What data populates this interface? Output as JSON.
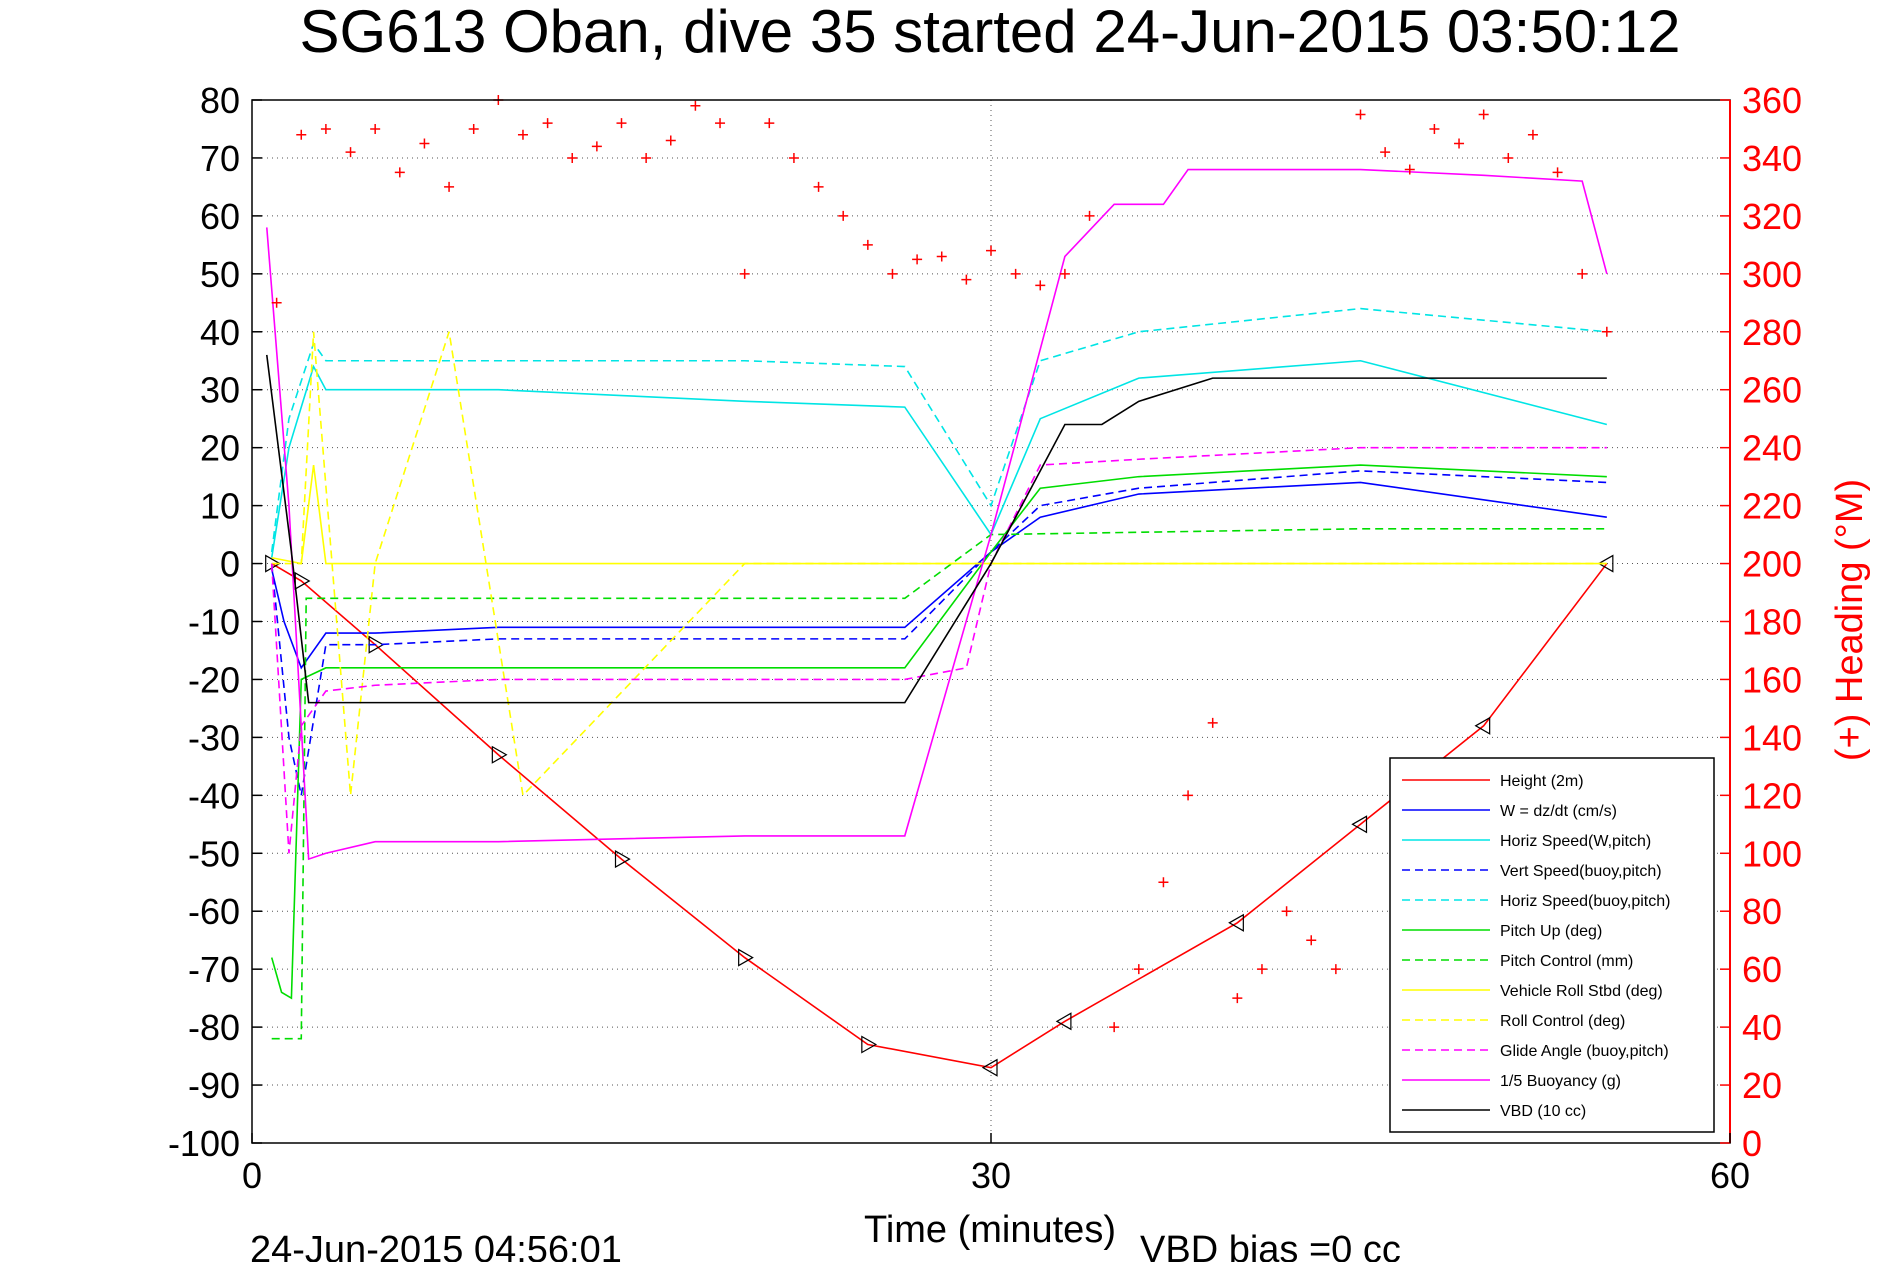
{
  "chart_data": {
    "type": "line",
    "title": "SG613 Oban, dive 35 started 24-Jun-2015 03:50:12",
    "xlabel": "Time (minutes)",
    "ylabel_right": "(+) Heading (°M)",
    "footer_left": "24-Jun-2015 04:56:01",
    "footer_right": "VBD bias =0 cc",
    "xlim": [
      0,
      60
    ],
    "ylim_left": [
      -100,
      80
    ],
    "ylim_right": [
      0,
      360
    ],
    "x_ticks": [
      "0",
      "30",
      "60"
    ],
    "y_left_ticks": [
      "80",
      "70",
      "60",
      "50",
      "40",
      "30",
      "20",
      "10",
      "0",
      "-10",
      "-20",
      "-30",
      "-40",
      "-50",
      "-60",
      "-70",
      "-80",
      "-90",
      "-100"
    ],
    "y_right_ticks": [
      "360",
      "340",
      "320",
      "300",
      "280",
      "260",
      "240",
      "220",
      "200",
      "180",
      "160",
      "140",
      "120",
      "100",
      "80",
      "60",
      "40",
      "20",
      "0"
    ],
    "grid": "dotted",
    "legend_position": "bottom-right",
    "legend": [
      {
        "label": "Height (2m)",
        "color": "#ff0000",
        "dash": false
      },
      {
        "label": "W = dz/dt (cm/s)",
        "color": "#0000ff",
        "dash": false
      },
      {
        "label": "Horiz Speed(W,pitch)",
        "color": "#00e5e5",
        "dash": false
      },
      {
        "label": "Vert Speed(buoy,pitch)",
        "color": "#0000ff",
        "dash": true
      },
      {
        "label": "Horiz Speed(buoy,pitch)",
        "color": "#00e5e5",
        "dash": true
      },
      {
        "label": "Pitch Up (deg)",
        "color": "#00dd00",
        "dash": false
      },
      {
        "label": "Pitch Control (mm)",
        "color": "#00dd00",
        "dash": true
      },
      {
        "label": "Vehicle Roll Stbd (deg)",
        "color": "#ffff00",
        "dash": false
      },
      {
        "label": "Roll Control (deg)",
        "color": "#ffff00",
        "dash": true
      },
      {
        "label": "Glide Angle (buoy,pitch)",
        "color": "#ff00ff",
        "dash": true
      },
      {
        "label": "1/5 Buoyancy (g)",
        "color": "#ff00ff",
        "dash": false
      },
      {
        "label": "VBD (10 cc)",
        "color": "#000000",
        "dash": false
      }
    ],
    "series": [
      {
        "name": "Height (2m)",
        "color": "#ff0000",
        "x": [
          0.8,
          2,
          5,
          10,
          15,
          20,
          25,
          30,
          33,
          40,
          45,
          50,
          55
        ],
        "y": [
          0,
          -3,
          -14,
          -33,
          -51,
          -68,
          -83,
          -87,
          -79,
          -62,
          -45,
          -28,
          0
        ]
      },
      {
        "name": "W = dz/dt (cm/s)",
        "color": "#0000ff",
        "x": [
          0.8,
          1.3,
          2,
          3,
          5,
          10,
          15,
          20,
          26.5,
          30,
          32,
          36,
          45,
          55
        ],
        "y": [
          -1,
          -10,
          -18,
          -12,
          -12,
          -11,
          -11,
          -11,
          -11,
          2,
          8,
          12,
          14,
          8
        ]
      },
      {
        "name": "Horiz Speed(W,pitch)",
        "color": "#00e5e5",
        "x": [
          0.8,
          1.5,
          2.5,
          3,
          5,
          10,
          15,
          20,
          26.5,
          30,
          32,
          36,
          45,
          55
        ],
        "y": [
          1,
          20,
          34,
          30,
          30,
          30,
          29,
          28,
          27,
          5,
          25,
          32,
          35,
          24
        ]
      },
      {
        "name": "Vert Speed(buoy,pitch)",
        "color": "#0000ff",
        "x": [
          0.8,
          1.5,
          2,
          3,
          5,
          10,
          15,
          20,
          26.5,
          30,
          32,
          36,
          45,
          55
        ],
        "y": [
          0,
          -30,
          -40,
          -14,
          -14,
          -13,
          -13,
          -13,
          -13,
          2,
          10,
          13,
          16,
          14
        ]
      },
      {
        "name": "Horiz Speed(buoy,pitch)",
        "color": "#00e5e5",
        "x": [
          0.8,
          1.5,
          2.5,
          3,
          5,
          10,
          15,
          20,
          26.5,
          30,
          32,
          36,
          45,
          55
        ],
        "y": [
          2,
          25,
          38,
          35,
          35,
          35,
          35,
          35,
          34,
          10,
          35,
          40,
          44,
          40
        ]
      },
      {
        "name": "Pitch Up (deg)",
        "color": "#00dd00",
        "x": [
          0.8,
          1.2,
          1.6,
          2,
          2.5,
          3,
          5,
          10,
          15,
          20,
          26.5,
          30,
          32,
          36,
          45,
          55
        ],
        "y": [
          -68,
          -74,
          -75,
          -20,
          -19,
          -18,
          -18,
          -18,
          -18,
          -18,
          -18,
          2,
          13,
          15,
          17,
          15
        ]
      },
      {
        "name": "Pitch Control (mm)",
        "color": "#00dd00",
        "x": [
          0.8,
          1.2,
          2,
          2.2,
          3,
          10,
          20,
          26.5,
          30,
          45,
          55
        ],
        "y": [
          -82,
          -82,
          -82,
          -6,
          -6,
          -6,
          -6,
          -6,
          5,
          6,
          6
        ]
      },
      {
        "name": "Vehicle Roll Stbd (deg)",
        "color": "#ffff00",
        "x": [
          0.8,
          2,
          2.5,
          3,
          4,
          10,
          20,
          26.5,
          30,
          40,
          55
        ],
        "y": [
          1,
          0,
          17,
          0,
          0,
          0,
          0,
          0,
          0,
          0,
          0
        ]
      },
      {
        "name": "Roll Control (deg)",
        "color": "#ffff00",
        "x": [
          0.8,
          2,
          2.5,
          4,
          5,
          8,
          11,
          20,
          26.5,
          30,
          40,
          55
        ],
        "y": [
          0,
          0,
          40,
          -40,
          0,
          40,
          -40,
          0,
          0,
          0,
          0,
          0
        ]
      },
      {
        "name": "Glide Angle (buoy,pitch)",
        "color": "#ff00ff",
        "x": [
          0.8,
          1.5,
          2,
          3,
          5,
          10,
          20,
          26.5,
          29,
          30,
          32,
          36,
          45,
          55
        ],
        "y": [
          0,
          -50,
          -28,
          -22,
          -21,
          -20,
          -20,
          -20,
          -18,
          0,
          17,
          18,
          20,
          20
        ]
      },
      {
        "name": "1/5 Buoyancy (g)",
        "color": "#ff00ff",
        "x": [
          0.6,
          1.5,
          2.3,
          3,
          5,
          10,
          20,
          26.5,
          30,
          33,
          35,
          37,
          38,
          45,
          50,
          54,
          55
        ],
        "y": [
          58,
          10,
          -51,
          -50,
          -48,
          -48,
          -47,
          -47,
          5,
          53,
          62,
          62,
          68,
          68,
          67,
          66,
          50
        ]
      },
      {
        "name": "VBD (10 cc)",
        "color": "#000000",
        "x": [
          0.6,
          1.6,
          2.3,
          3,
          5,
          10,
          20,
          26.5,
          30,
          33,
          34.5,
          36,
          37.5,
          39,
          45,
          55
        ],
        "y": [
          36,
          2,
          -24,
          -24,
          -24,
          -24,
          -24,
          -24,
          0,
          24,
          24,
          28,
          30,
          32,
          32,
          32
        ]
      },
      {
        "name": "Heading",
        "color": "#ff0000",
        "marker": "+",
        "axis": "right",
        "x": [
          1,
          2,
          3,
          4,
          5,
          6,
          7,
          8,
          9,
          10,
          11,
          12,
          13,
          14,
          15,
          16,
          17,
          18,
          19,
          20,
          21,
          22,
          23,
          24,
          25,
          26,
          27,
          28,
          29,
          30,
          31,
          32,
          33,
          34,
          35,
          36,
          37,
          38,
          39,
          40,
          41,
          42,
          43,
          44,
          45,
          46,
          47,
          48,
          49,
          50,
          51,
          52,
          53,
          54,
          55
        ],
        "y": [
          290,
          348,
          350,
          342,
          350,
          335,
          345,
          330,
          350,
          360,
          348,
          352,
          340,
          344,
          352,
          340,
          346,
          358,
          352,
          300,
          352,
          340,
          330,
          320,
          310,
          300,
          305,
          306,
          298,
          308,
          300,
          296,
          300,
          320,
          40,
          60,
          90,
          120,
          145,
          50,
          60,
          80,
          70,
          60,
          355,
          342,
          336,
          350,
          345,
          355,
          340,
          348,
          335,
          300,
          280
        ]
      }
    ]
  }
}
